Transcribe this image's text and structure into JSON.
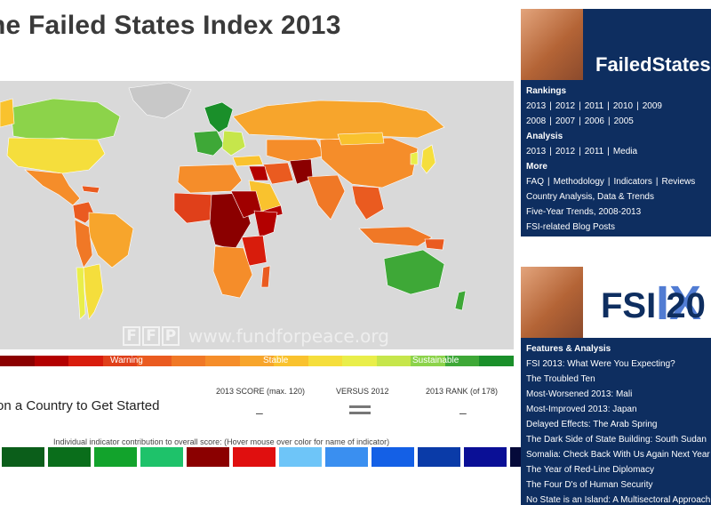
{
  "title": "he Failed States Index 2013",
  "watermark": {
    "logo_letters": [
      "F",
      "F",
      "P"
    ],
    "url": "www.fundforpeace.org"
  },
  "legend": {
    "labels": [
      "Warning",
      "Stable",
      "Sustainable"
    ],
    "colors": [
      "#8b0000",
      "#b30000",
      "#d81c0c",
      "#e0401a",
      "#ea5b20",
      "#f07826",
      "#f58d2a",
      "#f7a52c",
      "#f9c22e",
      "#f5de3c",
      "#e9ee4a",
      "#c6e64b",
      "#8cd34a",
      "#3ea837",
      "#1a8f2a"
    ]
  },
  "country_panel": {
    "prompt": "on a Country to Get Started",
    "score_header": "2013 SCORE (max. 120)",
    "versus_header": "VERSUS 2012",
    "rank_header": "2013 RANK (of 178)",
    "score_value": "–",
    "rank_value": "–"
  },
  "indicators": {
    "caption": "Individual indicator contribution to overall score: (Hover mouse over color for name of indicator)",
    "colors": [
      "#0b5e1a",
      "#0a6e1b",
      "#12a32c",
      "#1ec26a",
      "#8b0000",
      "#e00f0f",
      "#6ec5f8",
      "#3a8ff0",
      "#1460e6",
      "#0a3ba8",
      "#0a0f96",
      "#050a3a"
    ]
  },
  "sidebar_rankings": {
    "logo_text": "FailedStatesI",
    "rankings_heading": "Rankings",
    "rankings_row1": [
      "2013",
      "2012",
      "2011",
      "2010",
      "2009"
    ],
    "rankings_row2": [
      "2008",
      "2007",
      "2006",
      "2005"
    ],
    "analysis_heading": "Analysis",
    "analysis_row": [
      "2013",
      "2012",
      "2011",
      "Media"
    ],
    "more_heading": "More",
    "more_row": [
      "FAQ",
      "Methodology",
      "Indicators",
      "Reviews"
    ],
    "more_links": [
      "Country Analysis, Data & Trends",
      "Five-Year Trends, 2008-2013",
      "FSI-related Blog Posts"
    ]
  },
  "sidebar_features": {
    "logo_text": "FSI 20",
    "logo_ix": "IX",
    "heading": "Features & Analysis",
    "items": [
      "FSI 2013: What Were You Expecting?",
      "The Troubled Ten",
      "Most-Worsened 2013: Mali",
      "Most-Improved 2013: Japan",
      "Delayed Effects: The Arab Spring",
      "The Dark Side of State Building: South Sudan",
      "Somalia: Check Back With Us Again Next Year",
      "The Year of Red-Line Diplomacy",
      "The Four D's of Human Security",
      "No State is an Island: A Multisectoral Approach"
    ]
  }
}
